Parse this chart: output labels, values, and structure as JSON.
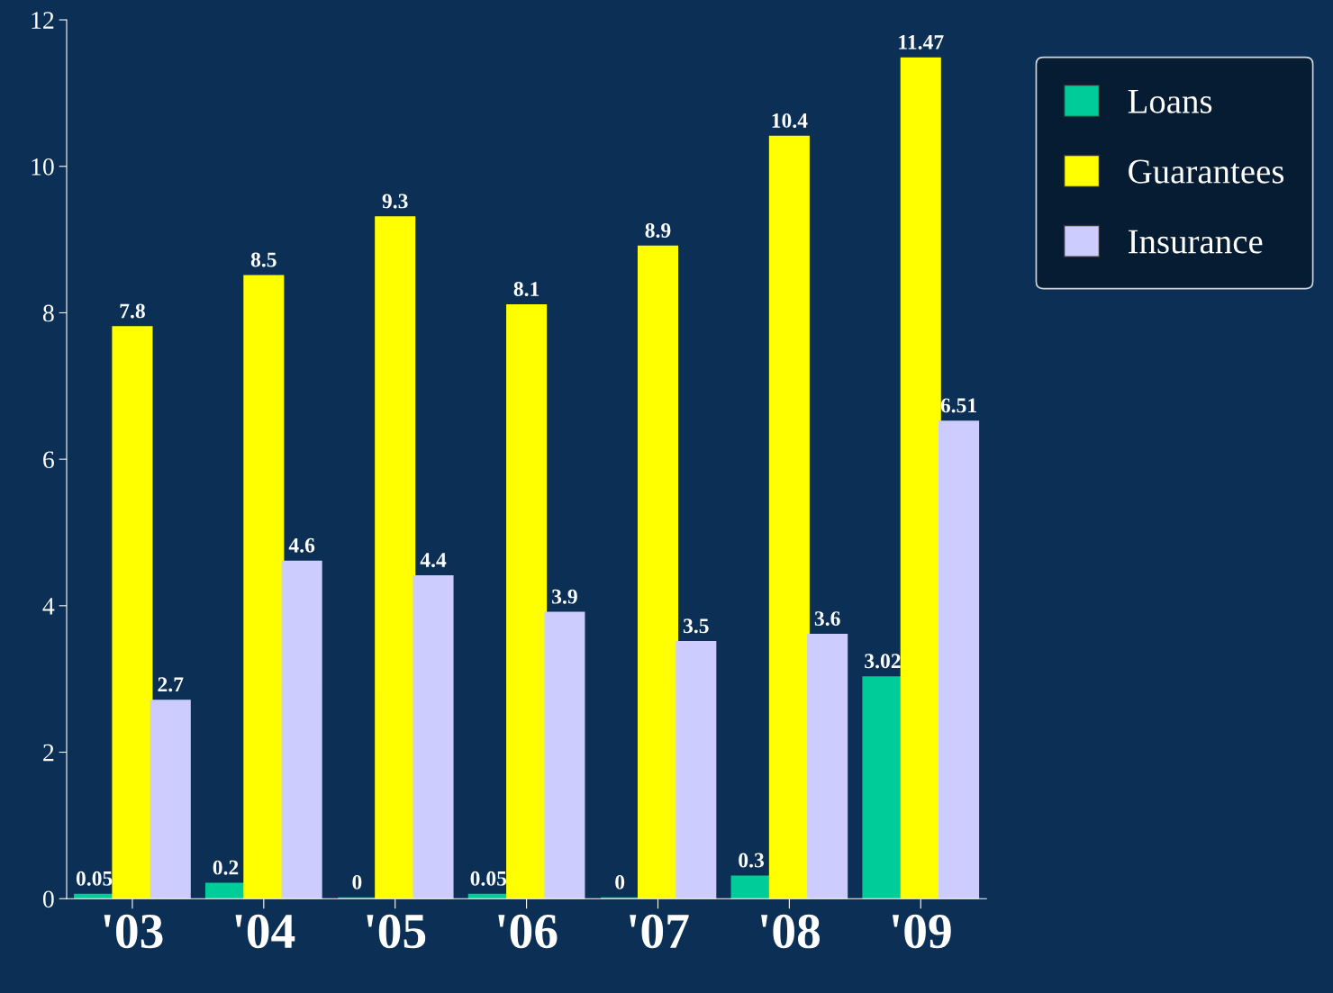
{
  "chart_data": {
    "type": "bar",
    "categories": [
      "'03",
      "'04",
      "'05",
      "'06",
      "'07",
      "'08",
      "'09"
    ],
    "series": [
      {
        "name": "Loans",
        "color": "#00cc99",
        "values": [
          0.05,
          0.2,
          0,
          0.05,
          0,
          0.3,
          3.02
        ]
      },
      {
        "name": "Guarantees",
        "color": "#ffff00",
        "values": [
          7.8,
          8.5,
          9.3,
          8.1,
          8.9,
          10.4,
          11.47
        ]
      },
      {
        "name": "Insurance",
        "color": "#ccccff",
        "values": [
          2.7,
          4.6,
          4.4,
          3.9,
          3.5,
          3.6,
          6.51
        ]
      }
    ],
    "ylim": [
      0,
      12
    ],
    "yticks": [
      0,
      2,
      4,
      6,
      8,
      10,
      12
    ],
    "data_labels": true,
    "grid": false,
    "legend": "top right"
  }
}
